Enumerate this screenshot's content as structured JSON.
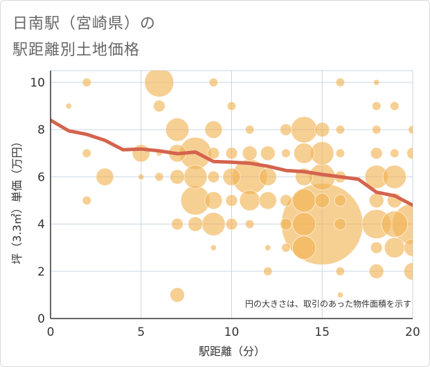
{
  "header": {
    "title_line1": "日南駅（宮崎県）の",
    "title_line2": "駅距離別土地価格"
  },
  "chart_data": {
    "type": "scatter",
    "title": "日南駅（宮崎県）の駅距離別土地価格",
    "xlabel": "駅距離（分）",
    "ylabel": "坪（3.3㎡）単価（万円）",
    "xlim": [
      0,
      20
    ],
    "ylim": [
      0,
      10.5
    ],
    "xticks": [
      0,
      5,
      10,
      15,
      20
    ],
    "yticks": [
      0,
      2,
      4,
      6,
      8,
      10
    ],
    "grid": true,
    "note": "円の大きさは、取引のあった物件面積を示す",
    "colors": {
      "bubble": "#f0b251",
      "trend": "#d4634e",
      "grid": "#c8d6e2",
      "axis": "#333333"
    },
    "points": [
      {
        "x": 1,
        "y": 9.0,
        "s": 1
      },
      {
        "x": 2,
        "y": 10.0,
        "s": 1.5
      },
      {
        "x": 2,
        "y": 7.0,
        "s": 1.5
      },
      {
        "x": 2,
        "y": 5.0,
        "s": 1.5
      },
      {
        "x": 3,
        "y": 6.0,
        "s": 3
      },
      {
        "x": 5,
        "y": 7.0,
        "s": 3
      },
      {
        "x": 5,
        "y": 6.0,
        "s": 1
      },
      {
        "x": 6,
        "y": 10.0,
        "s": 5
      },
      {
        "x": 6,
        "y": 9.0,
        "s": 2
      },
      {
        "x": 6,
        "y": 7.0,
        "s": 1
      },
      {
        "x": 6,
        "y": 6.0,
        "s": 1.5
      },
      {
        "x": 7,
        "y": 8.0,
        "s": 4
      },
      {
        "x": 7,
        "y": 7.0,
        "s": 3
      },
      {
        "x": 7,
        "y": 6.0,
        "s": 2.5
      },
      {
        "x": 7,
        "y": 4.0,
        "s": 2
      },
      {
        "x": 7,
        "y": 1.0,
        "s": 2.5
      },
      {
        "x": 8,
        "y": 7.0,
        "s": 5.5
      },
      {
        "x": 8,
        "y": 6.0,
        "s": 4
      },
      {
        "x": 8,
        "y": 5.0,
        "s": 5
      },
      {
        "x": 8,
        "y": 4.0,
        "s": 2.5
      },
      {
        "x": 9,
        "y": 10.0,
        "s": 1.5
      },
      {
        "x": 9,
        "y": 8.0,
        "s": 3
      },
      {
        "x": 9,
        "y": 7.0,
        "s": 2
      },
      {
        "x": 9,
        "y": 6.0,
        "s": 2
      },
      {
        "x": 9,
        "y": 5.0,
        "s": 3
      },
      {
        "x": 9,
        "y": 4.0,
        "s": 4
      },
      {
        "x": 9,
        "y": 3.0,
        "s": 1
      },
      {
        "x": 10,
        "y": 9.0,
        "s": 1.5
      },
      {
        "x": 10,
        "y": 7.0,
        "s": 2
      },
      {
        "x": 10,
        "y": 6.0,
        "s": 3
      },
      {
        "x": 10,
        "y": 5.0,
        "s": 2
      },
      {
        "x": 10,
        "y": 4.0,
        "s": 2
      },
      {
        "x": 11,
        "y": 8.0,
        "s": 1.5
      },
      {
        "x": 11,
        "y": 7.0,
        "s": 2.5
      },
      {
        "x": 11,
        "y": 6.0,
        "s": 6
      },
      {
        "x": 11,
        "y": 5.0,
        "s": 3.5
      },
      {
        "x": 11,
        "y": 4.0,
        "s": 1.5
      },
      {
        "x": 12,
        "y": 7.0,
        "s": 2.5
      },
      {
        "x": 12,
        "y": 6.0,
        "s": 3
      },
      {
        "x": 12,
        "y": 5.0,
        "s": 3
      },
      {
        "x": 12,
        "y": 3.0,
        "s": 1
      },
      {
        "x": 12,
        "y": 2.0,
        "s": 1.5
      },
      {
        "x": 13,
        "y": 8.0,
        "s": 2
      },
      {
        "x": 13,
        "y": 7.0,
        "s": 1.5
      },
      {
        "x": 13,
        "y": 5.0,
        "s": 2
      },
      {
        "x": 13,
        "y": 4.0,
        "s": 2
      },
      {
        "x": 13,
        "y": 3.0,
        "s": 1.5
      },
      {
        "x": 14,
        "y": 8.0,
        "s": 4.5
      },
      {
        "x": 14,
        "y": 7.0,
        "s": 3.5
      },
      {
        "x": 14,
        "y": 6.0,
        "s": 3
      },
      {
        "x": 14,
        "y": 5.0,
        "s": 4
      },
      {
        "x": 14,
        "y": 4.0,
        "s": 4
      },
      {
        "x": 14,
        "y": 3.0,
        "s": 4
      },
      {
        "x": 15,
        "y": 8.0,
        "s": 2.5
      },
      {
        "x": 15,
        "y": 7.0,
        "s": 4
      },
      {
        "x": 15,
        "y": 6.0,
        "s": 4.5
      },
      {
        "x": 15,
        "y": 5.0,
        "s": 2.5
      },
      {
        "x": 15,
        "y": 4.0,
        "s": 14
      },
      {
        "x": 16,
        "y": 10.0,
        "s": 1.5
      },
      {
        "x": 16,
        "y": 8.0,
        "s": 1.5
      },
      {
        "x": 16,
        "y": 7.0,
        "s": 1.5
      },
      {
        "x": 16,
        "y": 6.0,
        "s": 2
      },
      {
        "x": 16,
        "y": 5.0,
        "s": 2
      },
      {
        "x": 16,
        "y": 4.0,
        "s": 2
      },
      {
        "x": 16,
        "y": 2.0,
        "s": 1.5
      },
      {
        "x": 16,
        "y": 1.0,
        "s": 1
      },
      {
        "x": 18,
        "y": 10.0,
        "s": 1
      },
      {
        "x": 18,
        "y": 9.0,
        "s": 1.5
      },
      {
        "x": 18,
        "y": 8.0,
        "s": 1.5
      },
      {
        "x": 18,
        "y": 7.0,
        "s": 2
      },
      {
        "x": 18,
        "y": 6.0,
        "s": 4
      },
      {
        "x": 18,
        "y": 5.0,
        "s": 2.5
      },
      {
        "x": 18,
        "y": 4.0,
        "s": 5
      },
      {
        "x": 18,
        "y": 3.0,
        "s": 2
      },
      {
        "x": 18,
        "y": 2.0,
        "s": 2.5
      },
      {
        "x": 19,
        "y": 9.0,
        "s": 1.5
      },
      {
        "x": 19,
        "y": 7.0,
        "s": 1.5
      },
      {
        "x": 19,
        "y": 6.0,
        "s": 4
      },
      {
        "x": 19,
        "y": 5.0,
        "s": 2.5
      },
      {
        "x": 19,
        "y": 4.0,
        "s": 4.5
      },
      {
        "x": 19,
        "y": 3.0,
        "s": 3.5
      },
      {
        "x": 20,
        "y": 8.0,
        "s": 1.5
      },
      {
        "x": 20,
        "y": 7.0,
        "s": 2
      },
      {
        "x": 20,
        "y": 4.0,
        "s": 7
      },
      {
        "x": 20,
        "y": 3.0,
        "s": 3
      },
      {
        "x": 20,
        "y": 2.0,
        "s": 3
      }
    ],
    "trend": [
      {
        "x": 0,
        "y": 8.4
      },
      {
        "x": 1,
        "y": 7.95
      },
      {
        "x": 2,
        "y": 7.8
      },
      {
        "x": 3,
        "y": 7.55
      },
      {
        "x": 4,
        "y": 7.15
      },
      {
        "x": 5,
        "y": 7.18
      },
      {
        "x": 6,
        "y": 7.1
      },
      {
        "x": 7,
        "y": 6.98
      },
      {
        "x": 8,
        "y": 7.05
      },
      {
        "x": 9,
        "y": 6.65
      },
      {
        "x": 10,
        "y": 6.62
      },
      {
        "x": 11,
        "y": 6.58
      },
      {
        "x": 12,
        "y": 6.45
      },
      {
        "x": 13,
        "y": 6.27
      },
      {
        "x": 14,
        "y": 6.22
      },
      {
        "x": 15,
        "y": 6.1
      },
      {
        "x": 16,
        "y": 6.0
      },
      {
        "x": 17,
        "y": 5.9
      },
      {
        "x": 18,
        "y": 5.35
      },
      {
        "x": 19,
        "y": 5.2
      },
      {
        "x": 20,
        "y": 4.8
      }
    ]
  }
}
